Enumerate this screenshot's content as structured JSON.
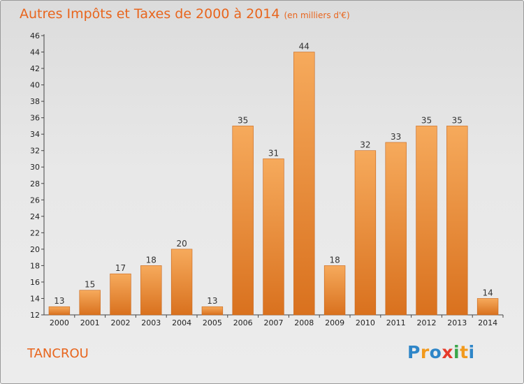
{
  "header": {
    "title": "Autres Impôts et Taxes de 2000 à 2014",
    "unit": "(en milliers d'€)"
  },
  "footer": {
    "commune": "TANCROU",
    "logo": [
      "P",
      "r",
      "o",
      "x",
      "i",
      "t",
      "i"
    ],
    "logo_colors": [
      "#2f86c8",
      "#f29a1d",
      "#2f86c8",
      "#e63a2b",
      "#3aa64a",
      "#f29a1d",
      "#2f86c8"
    ]
  },
  "chart_data": {
    "type": "bar",
    "title": "Autres Impôts et Taxes de 2000 à 2014",
    "subtitle": "(en milliers d'€)",
    "categories": [
      "2000",
      "2001",
      "2002",
      "2003",
      "2004",
      "2005",
      "2006",
      "2007",
      "2008",
      "2009",
      "2010",
      "2011",
      "2012",
      "2013",
      "2014"
    ],
    "values": [
      13,
      15,
      17,
      18,
      20,
      13,
      35,
      31,
      44,
      18,
      32,
      33,
      35,
      35,
      14
    ],
    "ylim": [
      12,
      46
    ],
    "yticks": [
      12,
      14,
      16,
      18,
      20,
      22,
      24,
      26,
      28,
      30,
      32,
      34,
      36,
      38,
      40,
      42,
      44,
      46
    ],
    "grid": false,
    "bar_color": "#ef8a35",
    "bar_color_top": "#f6aa5c",
    "bar_color_bottom": "#d9711e"
  }
}
